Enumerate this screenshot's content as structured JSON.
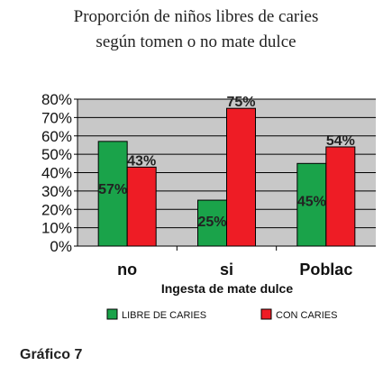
{
  "title_line1": "Proporción de niños libres de caries",
  "title_line2": "según tomen o no mate dulce",
  "caption": "Gráfico 7",
  "colors": {
    "plot_background": "#c8c8c8",
    "gridline": "#000000",
    "series_libre": "#1aa34a",
    "series_con": "#ee1c25"
  },
  "chart_data": {
    "type": "bar",
    "categories": [
      "no",
      "si",
      "Poblac"
    ],
    "series": [
      {
        "name": "LIBRE DE CARIES",
        "values": [
          57,
          25,
          45
        ],
        "labels": [
          "57%",
          "25%",
          "45%"
        ]
      },
      {
        "name": "CON CARIES",
        "values": [
          43,
          75,
          54
        ],
        "labels": [
          "43%",
          "75%",
          "54%"
        ]
      }
    ],
    "xlabel": "Ingesta de mate dulce",
    "ylabel": "",
    "ylim": [
      0,
      80
    ],
    "yticks": [
      "0%",
      "10%",
      "20%",
      "30%",
      "40%",
      "50%",
      "60%",
      "70%",
      "80%"
    ],
    "grid": true,
    "legend_position": "bottom"
  }
}
